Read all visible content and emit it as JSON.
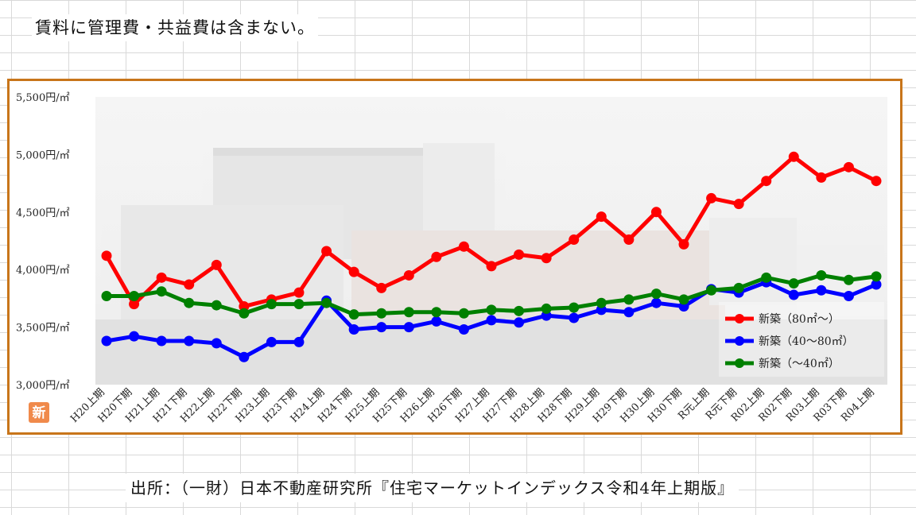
{
  "note": "賃料に管理費・共益費は含まない。",
  "source": "出所：（一財）日本不動産研究所『住宅マーケットインデックス令和4年上期版』",
  "logo_glyph": "新",
  "colors": {
    "frame": "#c8751a",
    "series_80plus": "#ff0000",
    "series_40to80": "#0000ff",
    "series_under40": "#008000"
  },
  "chart_data": {
    "type": "line",
    "title": "",
    "xlabel": "",
    "ylabel": "",
    "ylim": [
      3000,
      5500
    ],
    "y_ticks": [
      3000,
      3500,
      4000,
      4500,
      5000,
      5500
    ],
    "y_tick_labels": [
      "3,000円/㎡",
      "3,500円/㎡",
      "4,000円/㎡",
      "4,500円/㎡",
      "5,000円/㎡",
      "5,500円/㎡"
    ],
    "grid": false,
    "legend_position": "bottom-right",
    "categories": [
      "H20上期",
      "H20下期",
      "H21上期",
      "H21下期",
      "H22上期",
      "H22下期",
      "H23上期",
      "H23下期",
      "H24上期",
      "H24下期",
      "H25上期",
      "H25下期",
      "H26上期",
      "H26下期",
      "H27上期",
      "H27下期",
      "H28上期",
      "H28下期",
      "H29上期",
      "H29下期",
      "H30上期",
      "H30下期",
      "R元上期",
      "R元下期",
      "R02上期",
      "R02下期",
      "R03上期",
      "R03下期",
      "R04上期"
    ],
    "series": [
      {
        "name": "新築（80㎡～）",
        "color": "#ff0000",
        "values": [
          4120,
          3700,
          3930,
          3870,
          4040,
          3680,
          3740,
          3800,
          4160,
          3980,
          3840,
          3950,
          4110,
          4200,
          4030,
          4130,
          4100,
          4260,
          4460,
          4260,
          4500,
          4220,
          4620,
          4570,
          4770,
          4980,
          4800,
          4890,
          4770
        ]
      },
      {
        "name": "新築（40～80㎡）",
        "color": "#0000ff",
        "values": [
          3380,
          3420,
          3380,
          3380,
          3360,
          3240,
          3370,
          3370,
          3730,
          3480,
          3500,
          3500,
          3550,
          3480,
          3560,
          3540,
          3600,
          3580,
          3650,
          3630,
          3710,
          3680,
          3830,
          3800,
          3890,
          3780,
          3820,
          3770,
          3870
        ]
      },
      {
        "name": "新築（～40㎡）",
        "color": "#008000",
        "values": [
          3770,
          3770,
          3810,
          3710,
          3690,
          3620,
          3700,
          3700,
          3710,
          3610,
          3620,
          3630,
          3630,
          3620,
          3650,
          3640,
          3660,
          3670,
          3710,
          3740,
          3790,
          3740,
          3820,
          3840,
          3930,
          3880,
          3950,
          3910,
          3940
        ]
      }
    ]
  }
}
